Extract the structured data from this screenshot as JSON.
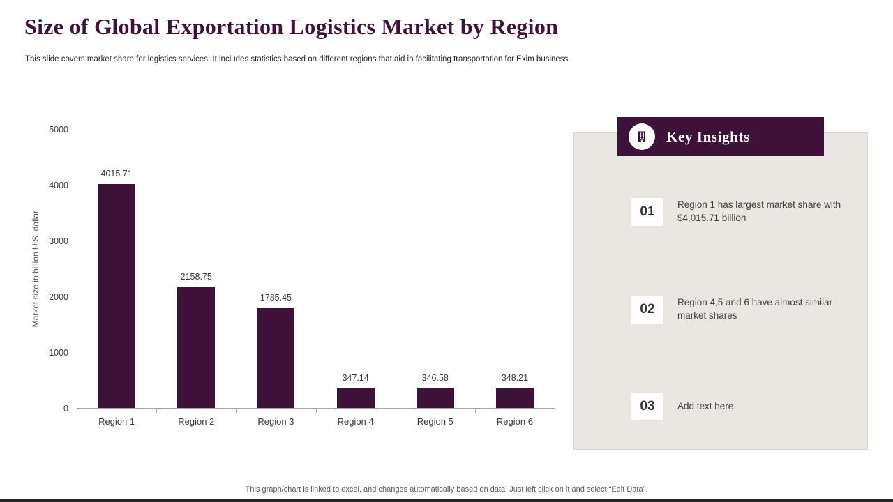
{
  "slide": {
    "title": "Size of Global Exportation Logistics Market by Region",
    "subtitle": "This slide covers market share for logistics services. It includes statistics based on different regions that aid in facilitating transportation for Exim business.",
    "footer": "This graph/chart is linked to excel, and changes automatically based on data. Just left click on it and select “Edit Data”."
  },
  "chart_data": {
    "type": "bar",
    "categories": [
      "Region 1",
      "Region 2",
      "Region 3",
      "Region 4",
      "Region 5",
      "Region 6"
    ],
    "values": [
      4015.71,
      2158.75,
      1785.45,
      347.14,
      346.58,
      348.21
    ],
    "data_labels": [
      "4015.71",
      "2158.75",
      "1785.45",
      "347.14",
      "346.58",
      "348.21"
    ],
    "title": "",
    "xlabel": "",
    "ylabel": "Market size in billion U.S. dollar",
    "ylim": [
      0,
      5000
    ],
    "yticks": [
      0,
      1000,
      2000,
      3000,
      4000,
      5000
    ],
    "bar_color": "#3E1238",
    "grid": false,
    "legend": "none"
  },
  "key_insights": {
    "header": "Key Insights",
    "icon": "building-icon",
    "items": [
      {
        "number": "01",
        "text": "Region 1 has largest market share with $4,015.71 billion"
      },
      {
        "number": "02",
        "text": "Region 4,5 and 6 have almost similar market shares"
      },
      {
        "number": "03",
        "text": "Add text here"
      }
    ]
  },
  "colors": {
    "accent": "#3E1238",
    "panel_background": "#EAE6E2",
    "title_text": "#3E1238"
  }
}
